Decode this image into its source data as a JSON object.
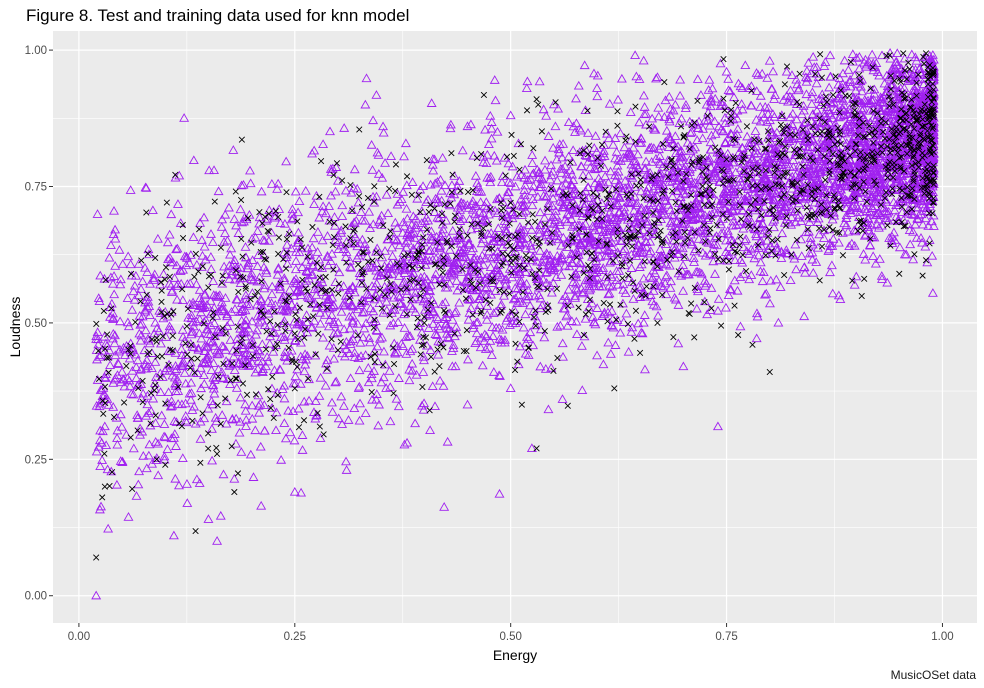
{
  "chart_data": {
    "type": "scatter",
    "title": "Figure 8. Test and training data used for knn model",
    "xlabel": "Energy",
    "ylabel": "Loudness",
    "caption": "MusicOSet data",
    "xlim": [
      -0.03,
      1.04
    ],
    "ylim": [
      -0.05,
      1.035
    ],
    "x_ticks": [
      0.0,
      0.25,
      0.5,
      0.75,
      1.0
    ],
    "x_tick_labels": [
      "0.00",
      "0.25",
      "0.50",
      "0.75",
      "1.00"
    ],
    "y_ticks": [
      0.0,
      0.25,
      0.5,
      0.75,
      1.0
    ],
    "y_tick_labels": [
      "0.00",
      "0.25",
      "0.50",
      "0.75",
      "1.00"
    ],
    "grid": true,
    "panel_background": "#ebebeb",
    "legend": "none",
    "series": [
      {
        "marker": "triangle-open",
        "color": "#a020f0",
        "approx_points": 5200,
        "points": [
          [
            0.02,
            0.0
          ],
          [
            0.03,
            0.31
          ],
          [
            0.02,
            0.47
          ],
          [
            0.05,
            0.41
          ],
          [
            0.07,
            0.48
          ],
          [
            0.08,
            0.42
          ],
          [
            0.1,
            0.29
          ],
          [
            0.1,
            0.52
          ],
          [
            0.11,
            0.11
          ],
          [
            0.12,
            0.42
          ],
          [
            0.13,
            0.39
          ],
          [
            0.14,
            0.56
          ],
          [
            0.15,
            0.14
          ],
          [
            0.16,
            0.1
          ],
          [
            0.17,
            0.45
          ],
          [
            0.18,
            0.69
          ],
          [
            0.2,
            0.59
          ],
          [
            0.22,
            0.65
          ],
          [
            0.24,
            0.62
          ],
          [
            0.27,
            0.81
          ],
          [
            0.3,
            0.76
          ],
          [
            0.34,
            0.78
          ],
          [
            0.38,
            0.66
          ],
          [
            0.41,
            0.8
          ],
          [
            0.45,
            0.86
          ],
          [
            0.5,
            0.88
          ],
          [
            0.55,
            0.9
          ],
          [
            0.6,
            0.93
          ],
          [
            0.67,
            0.95
          ],
          [
            0.75,
            0.96
          ],
          [
            0.8,
            0.98
          ],
          [
            0.87,
            0.99
          ],
          [
            0.93,
            0.99
          ],
          [
            0.97,
            0.98
          ],
          [
            0.99,
            0.95
          ],
          [
            0.96,
            0.7
          ],
          [
            0.93,
            0.58
          ],
          [
            0.88,
            0.55
          ],
          [
            0.81,
            0.5
          ],
          [
            0.74,
            0.31
          ],
          [
            0.7,
            0.42
          ],
          [
            0.6,
            0.44
          ],
          [
            0.56,
            0.36
          ],
          [
            0.5,
            0.38
          ],
          [
            0.45,
            0.35
          ],
          [
            0.38,
            0.28
          ],
          [
            0.31,
            0.23
          ],
          [
            0.25,
            0.19
          ]
        ]
      },
      {
        "marker": "x",
        "color": "#000000",
        "approx_points": 1300,
        "points": [
          [
            0.02,
            0.07
          ],
          [
            0.03,
            0.2
          ],
          [
            0.06,
            0.29
          ],
          [
            0.09,
            0.25
          ],
          [
            0.1,
            0.24
          ],
          [
            0.13,
            0.46
          ],
          [
            0.16,
            0.26
          ],
          [
            0.18,
            0.19
          ],
          [
            0.22,
            0.7
          ],
          [
            0.25,
            0.38
          ],
          [
            0.3,
            0.45
          ],
          [
            0.35,
            0.6
          ],
          [
            0.4,
            0.5
          ],
          [
            0.45,
            0.66
          ],
          [
            0.5,
            0.72
          ],
          [
            0.53,
            0.91
          ],
          [
            0.53,
            0.27
          ],
          [
            0.6,
            0.69
          ],
          [
            0.62,
            0.38
          ],
          [
            0.67,
            0.5
          ],
          [
            0.7,
            0.76
          ],
          [
            0.75,
            0.8
          ],
          [
            0.78,
            0.46
          ],
          [
            0.8,
            0.41
          ],
          [
            0.82,
            0.97
          ],
          [
            0.85,
            0.86
          ],
          [
            0.9,
            0.88
          ],
          [
            0.92,
            0.83
          ],
          [
            0.95,
            0.59
          ],
          [
            0.97,
            0.94
          ],
          [
            0.99,
            0.96
          ],
          [
            0.99,
            0.76
          ]
        ]
      }
    ]
  }
}
